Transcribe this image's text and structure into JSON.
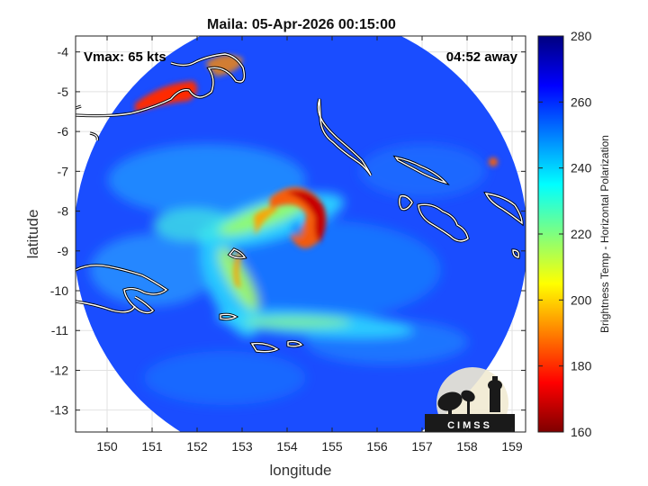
{
  "chart_data": {
    "type": "heatmap",
    "title": "Maila: 05-Apr-2026 00:15:00",
    "xlabel": "longitude",
    "ylabel": "latitude",
    "xlim": [
      149.3,
      159.3
    ],
    "ylim": [
      -13.55,
      -3.6
    ],
    "xticks": [
      150,
      151,
      152,
      153,
      154,
      155,
      156,
      157,
      158,
      159
    ],
    "yticks": [
      -4,
      -5,
      -6,
      -7,
      -8,
      -9,
      -10,
      -11,
      -12,
      -13
    ],
    "grid": true,
    "colorbar": {
      "label": "Brightness Temp - Horizontal Polarization",
      "range": [
        160,
        280
      ],
      "ticks": [
        160,
        180,
        200,
        220,
        240,
        260,
        280
      ],
      "colormap": "jet",
      "colors": [
        "#7f0000",
        "#ff0000",
        "#ffff00",
        "#00ffff",
        "#0000ff",
        "#00007f"
      ]
    },
    "storm_center": {
      "lon": 154.5,
      "lat": -8.7
    },
    "annotations": {
      "vmax": "Vmax: 65 kts",
      "time_away": "04:52 away"
    }
  },
  "logo": {
    "text": "CIMSS"
  }
}
